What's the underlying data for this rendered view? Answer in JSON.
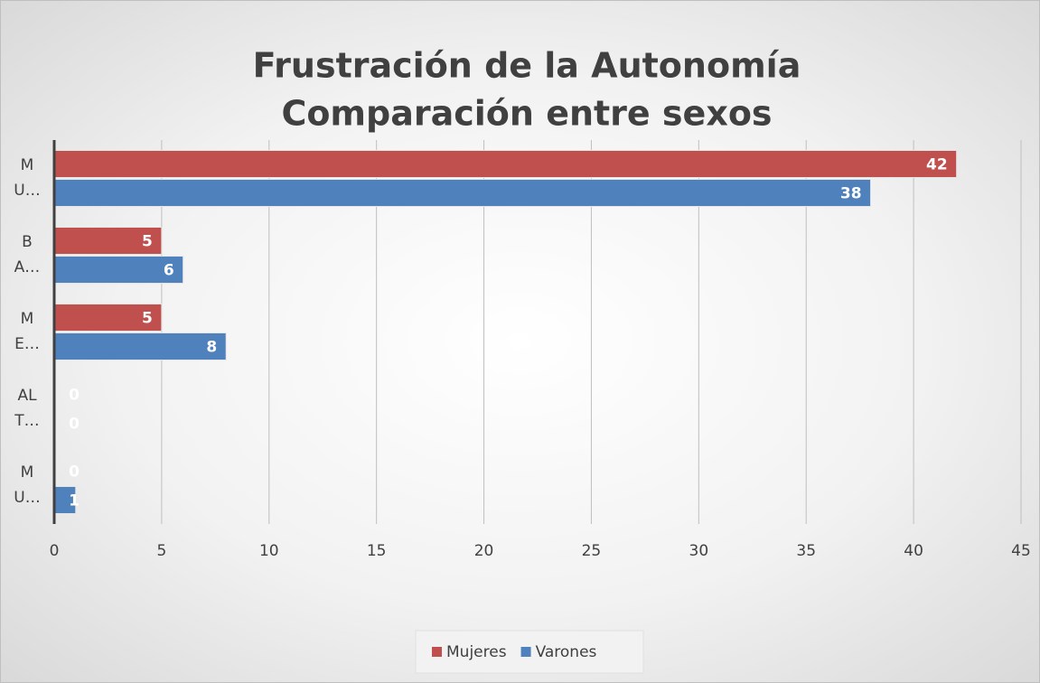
{
  "chart_data": {
    "type": "hbar",
    "title": "Frustración de la Autonomía",
    "subtitle": "Comparación entre sexos",
    "categories": [
      "M U…",
      "B A…",
      "M E…",
      "AL T…",
      "M U…"
    ],
    "series": [
      {
        "name": "Mujeres",
        "color": "#c0504d",
        "values": [
          42,
          5,
          5,
          0,
          0
        ]
      },
      {
        "name": "Varones",
        "color": "#4f81bd",
        "values": [
          38,
          6,
          8,
          0,
          1
        ]
      }
    ],
    "xlim": [
      0,
      45
    ],
    "xticks": [
      0,
      5,
      10,
      15,
      20,
      25,
      30,
      35,
      40,
      45
    ],
    "grid": true,
    "legend": "bottom"
  }
}
